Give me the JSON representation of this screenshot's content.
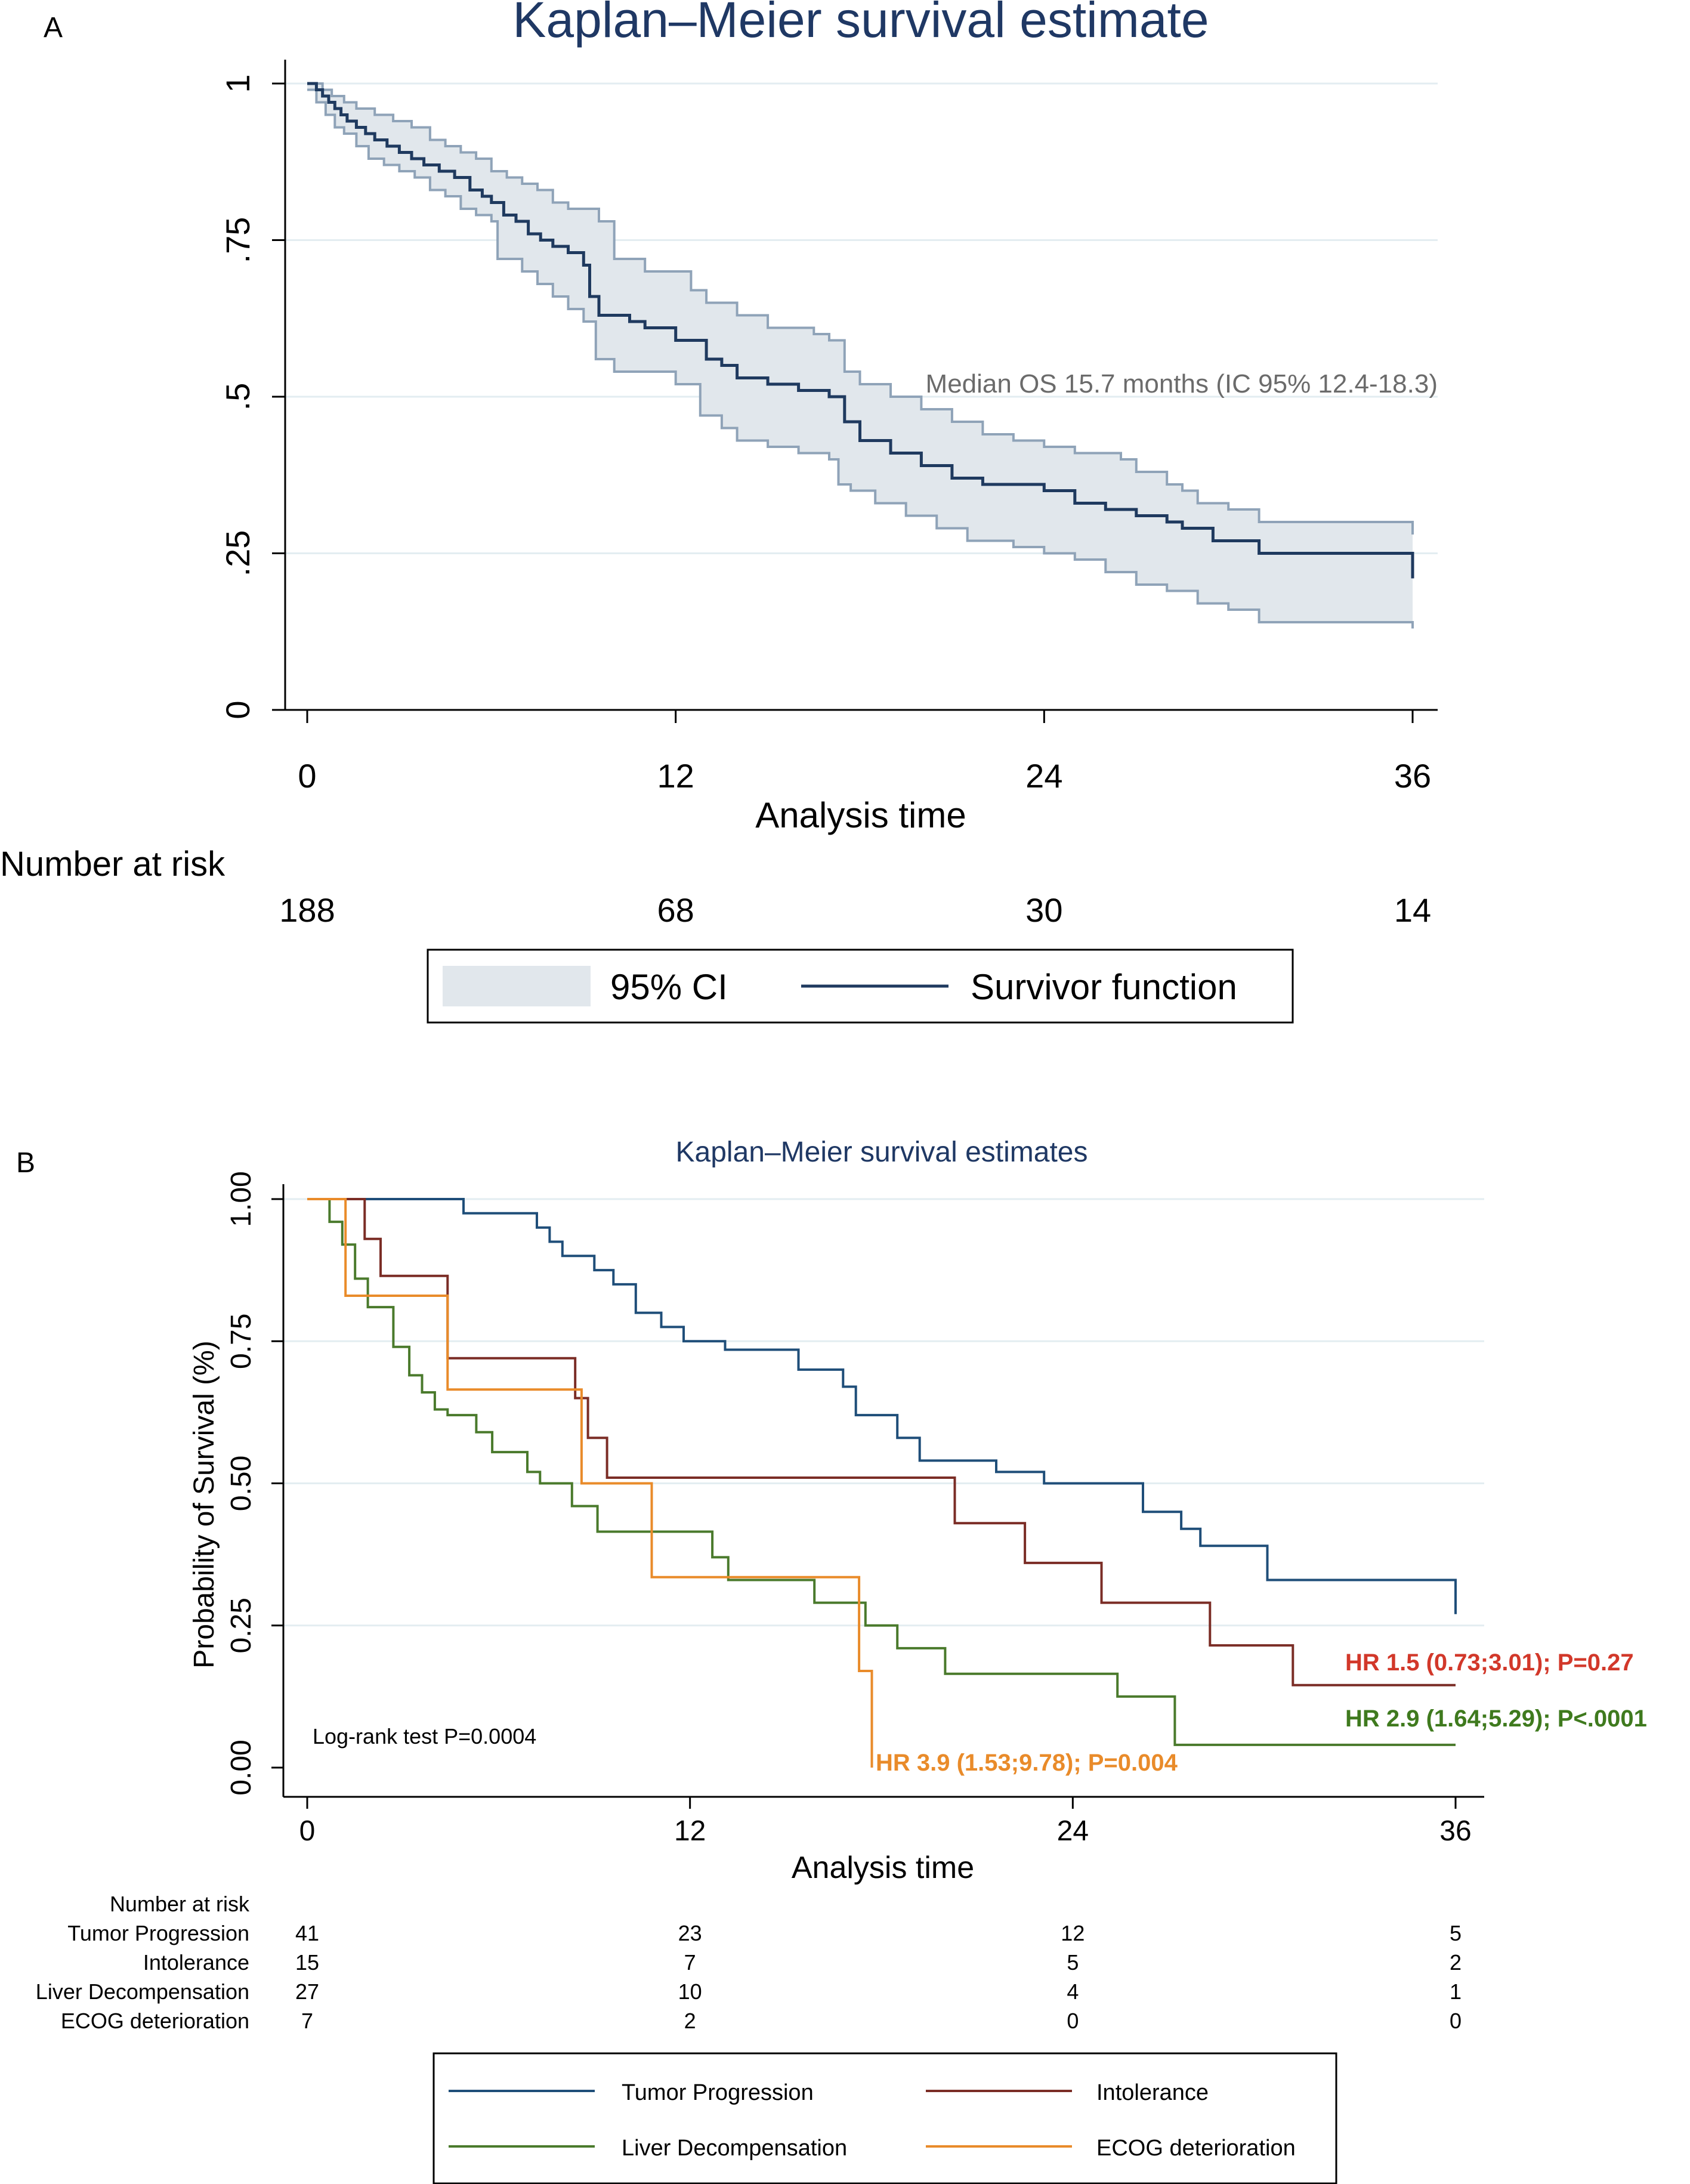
{
  "chart_data": [
    {
      "panel_label": "A",
      "type": "line",
      "title": "Kaplan–Meier survival estimate",
      "xlabel": "Analysis time",
      "ylabel": "",
      "xlim": [
        0,
        36
      ],
      "ylim": [
        0,
        1
      ],
      "x_ticks": [
        0,
        12,
        24,
        36
      ],
      "x_tick_labels": [
        "0",
        "12",
        "24",
        "36"
      ],
      "y_ticks": [
        0,
        0.25,
        0.5,
        0.75,
        1
      ],
      "y_tick_labels": [
        "0",
        ".25",
        ".5",
        ".75",
        "1"
      ],
      "grid": true,
      "annotation": "Median OS 15.7 months (IC 95%  12.4-18.3)",
      "number_at_risk": {
        "label": "Number at risk",
        "times": [
          0,
          12,
          24,
          36
        ],
        "values": [
          188,
          68,
          30,
          14
        ]
      },
      "legend": {
        "position": "bottom",
        "entries": [
          "95% CI",
          "Survivor function"
        ]
      },
      "colors": {
        "survival": "#1f3a5f",
        "ci_fill": "#e1e7ec",
        "ci_line": "#8fa3b8",
        "grid": "#e3edf1",
        "title": "#1f3864",
        "annotation": "#6b6b6b"
      },
      "series": [
        {
          "name": "Survivor function",
          "step": true,
          "x": [
            0,
            0.3,
            0.5,
            0.7,
            0.9,
            1.1,
            1.3,
            1.6,
            1.9,
            2.2,
            2.6,
            3.0,
            3.4,
            3.8,
            4.3,
            4.8,
            5.3,
            5.7,
            6.0,
            6.4,
            6.8,
            7.2,
            7.6,
            8.0,
            8.5,
            9.0,
            9.2,
            9.5,
            10.5,
            11.0,
            12.0,
            13.0,
            13.5,
            14.0,
            15.0,
            16.0,
            17.0,
            17.5,
            18.0,
            19.0,
            20.0,
            21.0,
            22.0,
            24.0,
            25.0,
            26.0,
            27.0,
            28.0,
            28.5,
            29.5,
            31.0,
            36.0
          ],
          "y": [
            1,
            0.99,
            0.98,
            0.97,
            0.96,
            0.95,
            0.94,
            0.93,
            0.92,
            0.91,
            0.9,
            0.89,
            0.88,
            0.87,
            0.86,
            0.85,
            0.83,
            0.82,
            0.81,
            0.79,
            0.78,
            0.76,
            0.75,
            0.74,
            0.73,
            0.71,
            0.66,
            0.63,
            0.62,
            0.61,
            0.59,
            0.56,
            0.55,
            0.53,
            0.52,
            0.51,
            0.5,
            0.46,
            0.43,
            0.41,
            0.39,
            0.37,
            0.36,
            0.35,
            0.33,
            0.32,
            0.31,
            0.3,
            0.29,
            0.27,
            0.25,
            0.21
          ]
        },
        {
          "name": "95% CI lower",
          "step": true,
          "x": [
            0,
            0.3,
            0.6,
            0.9,
            1.2,
            1.6,
            2.0,
            2.5,
            3.0,
            3.5,
            4.0,
            4.5,
            5.0,
            5.5,
            6.0,
            6.2,
            7.0,
            7.5,
            8.0,
            8.5,
            9.0,
            9.4,
            10.0,
            12.0,
            12.8,
            13.5,
            14.0,
            15.0,
            16.0,
            17.0,
            17.3,
            17.7,
            18.5,
            19.5,
            20.5,
            21.5,
            23.0,
            24.0,
            25.0,
            26.0,
            27.0,
            28.0,
            29.0,
            30.0,
            31.0,
            36.0
          ],
          "y": [
            0.99,
            0.97,
            0.95,
            0.93,
            0.92,
            0.9,
            0.88,
            0.87,
            0.86,
            0.85,
            0.83,
            0.82,
            0.8,
            0.79,
            0.78,
            0.72,
            0.7,
            0.68,
            0.66,
            0.64,
            0.62,
            0.56,
            0.54,
            0.52,
            0.47,
            0.45,
            0.43,
            0.42,
            0.41,
            0.4,
            0.36,
            0.35,
            0.33,
            0.31,
            0.29,
            0.27,
            0.26,
            0.25,
            0.24,
            0.22,
            0.2,
            0.19,
            0.17,
            0.16,
            0.14,
            0.13
          ]
        },
        {
          "name": "95% CI upper",
          "step": true,
          "x": [
            0,
            0.5,
            0.8,
            1.2,
            1.6,
            2.2,
            2.8,
            3.4,
            4.0,
            4.5,
            5.0,
            5.5,
            6.0,
            6.5,
            7.0,
            7.5,
            8.0,
            8.5,
            9.0,
            9.5,
            10.0,
            11.0,
            12.5,
            13.0,
            14.0,
            15.0,
            16.5,
            17.0,
            17.5,
            18.0,
            19.0,
            20.0,
            21.0,
            22.0,
            23.0,
            24.0,
            25.0,
            26.5,
            27.0,
            28.0,
            28.5,
            29.0,
            30.0,
            31.0,
            36.0
          ],
          "y": [
            1,
            0.99,
            0.98,
            0.97,
            0.96,
            0.95,
            0.94,
            0.93,
            0.91,
            0.9,
            0.89,
            0.88,
            0.86,
            0.85,
            0.84,
            0.83,
            0.81,
            0.8,
            0.8,
            0.78,
            0.72,
            0.7,
            0.67,
            0.65,
            0.63,
            0.61,
            0.6,
            0.59,
            0.54,
            0.52,
            0.5,
            0.48,
            0.46,
            0.44,
            0.43,
            0.42,
            0.41,
            0.4,
            0.38,
            0.36,
            0.35,
            0.33,
            0.32,
            0.3,
            0.28
          ]
        }
      ]
    },
    {
      "panel_label": "B",
      "type": "line",
      "title": "Kaplan–Meier survival estimates",
      "xlabel": "Analysis time",
      "ylabel": "Probability of Survival (%)",
      "xlim": [
        0,
        36
      ],
      "ylim": [
        0,
        1
      ],
      "x_ticks": [
        0,
        12,
        24,
        36
      ],
      "x_tick_labels": [
        "0",
        "12",
        "24",
        "36"
      ],
      "y_ticks": [
        0,
        0.25,
        0.5,
        0.75,
        1
      ],
      "y_tick_labels": [
        "0.00",
        "0.25",
        "0.50",
        "0.75",
        "1.00"
      ],
      "grid": true,
      "annotations": {
        "logrank": "Log-rank test P=0.0004",
        "hr_intolerance": "HR 1.5 (0.73;3.01); P=0.27",
        "hr_liver": "HR 2.9 (1.64;5.29); P<.0001",
        "hr_ecog": "HR 3.9 (1.53;9.78); P=0.004"
      },
      "annotation_colors": {
        "hr_intolerance": "#d2382a",
        "hr_liver": "#3f7a1e",
        "hr_ecog": "#e98b2a",
        "logrank": "#000000"
      },
      "number_at_risk": {
        "label": "Number at risk",
        "times": [
          0,
          12,
          24,
          36
        ],
        "rows": [
          {
            "name": "Tumor Progression",
            "values": [
              41,
              23,
              12,
              5
            ]
          },
          {
            "name": "Intolerance",
            "values": [
              15,
              7,
              5,
              2
            ]
          },
          {
            "name": "Liver Decompensation",
            "values": [
              27,
              10,
              4,
              1
            ]
          },
          {
            "name": "ECOG deterioration",
            "values": [
              7,
              2,
              0,
              0
            ]
          }
        ]
      },
      "legend": {
        "position": "bottom",
        "entries": [
          "Tumor Progression",
          "Intolerance",
          "Liver Decompensation",
          "ECOG deterioration"
        ]
      },
      "title_color": "#1f3864",
      "grid_color": "#e3edf1",
      "series": [
        {
          "name": "Tumor Progression",
          "color": "#1f4e79",
          "x": [
            0,
            4.9,
            7.2,
            7.6,
            8.0,
            9.0,
            9.6,
            10.3,
            11.1,
            11.8,
            13.1,
            15.4,
            16.8,
            17.2,
            18.5,
            19.2,
            21.6,
            23.1,
            24.8,
            26.2,
            27.4,
            28.0,
            30.1,
            35.9,
            36.0
          ],
          "y": [
            1,
            0.975,
            0.95,
            0.925,
            0.9,
            0.875,
            0.85,
            0.8,
            0.775,
            0.75,
            0.735,
            0.7,
            0.67,
            0.62,
            0.58,
            0.54,
            0.52,
            0.5,
            0.5,
            0.45,
            0.42,
            0.39,
            0.33,
            0.33,
            0.27
          ]
        },
        {
          "name": "Intolerance",
          "color": "#7b2d26",
          "x": [
            0,
            1.8,
            2.3,
            4.4,
            8.4,
            8.8,
            9.4,
            20.3,
            22.5,
            24.9,
            28.3,
            30.9,
            36.0
          ],
          "y": [
            1,
            0.93,
            0.865,
            0.72,
            0.65,
            0.58,
            0.51,
            0.43,
            0.36,
            0.29,
            0.215,
            0.145,
            0.145
          ]
        },
        {
          "name": "Liver Decompensation",
          "color": "#4a7a2c",
          "x": [
            0,
            0.7,
            1.1,
            1.5,
            1.9,
            2.7,
            3.2,
            3.6,
            4.0,
            4.4,
            5.3,
            5.8,
            6.9,
            7.3,
            8.3,
            9.1,
            12.7,
            13.2,
            15.9,
            17.5,
            18.5,
            20.0,
            23.1,
            25.4,
            27.2,
            36.0
          ],
          "y": [
            1,
            0.96,
            0.92,
            0.86,
            0.81,
            0.74,
            0.69,
            0.66,
            0.63,
            0.62,
            0.59,
            0.555,
            0.52,
            0.5,
            0.46,
            0.415,
            0.37,
            0.33,
            0.29,
            0.25,
            0.21,
            0.165,
            0.165,
            0.125,
            0.04,
            0.04
          ]
        },
        {
          "name": "ECOG deterioration",
          "color": "#e98b2a",
          "x": [
            0,
            1.2,
            4.4,
            8.6,
            10.8,
            17.3,
            17.7
          ],
          "y": [
            1,
            0.83,
            0.665,
            0.5,
            0.335,
            0.17,
            0
          ]
        }
      ]
    }
  ]
}
